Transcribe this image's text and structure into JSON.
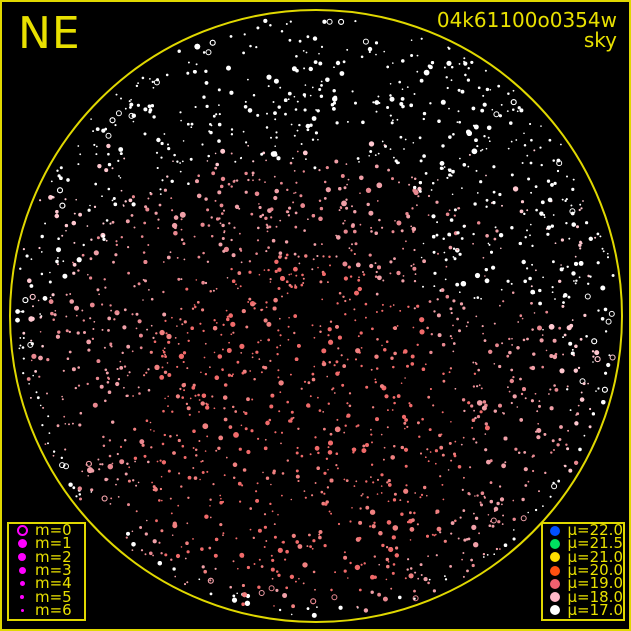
{
  "direction_label": "NE",
  "image_id": "04k61100o0354w",
  "image_type": "sky",
  "colors": {
    "frame": "#e0d800",
    "text": "#e8e000",
    "magnitude_symbol": "#ff00ff"
  },
  "magnitude_legend": [
    {
      "label": "m=0",
      "marker": "open-circle"
    },
    {
      "label": "m=1"
    },
    {
      "label": "m=2"
    },
    {
      "label": "m=3"
    },
    {
      "label": "m=4"
    },
    {
      "label": "m=5"
    },
    {
      "label": "m=6"
    }
  ],
  "sky_brightness_legend": [
    {
      "label": "μ=22.0",
      "color": "#0050ff"
    },
    {
      "label": "μ=21.5",
      "color": "#00e060"
    },
    {
      "label": "μ=21.0",
      "color": "#ffe000"
    },
    {
      "label": "μ=20.0",
      "color": "#ff5010"
    },
    {
      "label": "μ=19.0",
      "color": "#f06070"
    },
    {
      "label": "μ=18.0",
      "color": "#ffb8c8"
    },
    {
      "label": "μ=17.0",
      "color": "#ffffff"
    }
  ]
}
